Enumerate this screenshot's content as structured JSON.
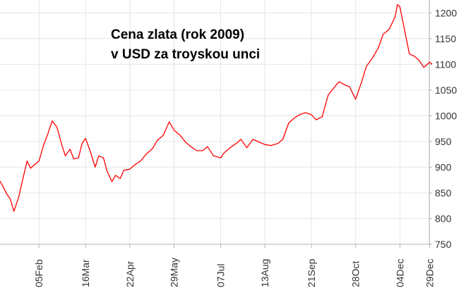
{
  "chart_data": {
    "type": "line",
    "title": "Cena zlata (rok 2009)",
    "subtitle": "v USD za troyskou unci",
    "xlabel": "",
    "ylabel": "",
    "ylim": [
      750,
      1225
    ],
    "x_range": [
      "2009-01-01",
      "2009-12-31"
    ],
    "y_ticks": [
      750,
      800,
      850,
      900,
      950,
      1000,
      1050,
      1100,
      1150,
      1200
    ],
    "x_ticks": [
      {
        "label": "05Feb",
        "date": "2009-02-05"
      },
      {
        "label": "16Mar",
        "date": "2009-03-16"
      },
      {
        "label": "22Apr",
        "date": "2009-04-22"
      },
      {
        "label": "29May",
        "date": "2009-05-29"
      },
      {
        "label": "07Jul",
        "date": "2009-07-07"
      },
      {
        "label": "13Aug",
        "date": "2009-08-13"
      },
      {
        "label": "21Sep",
        "date": "2009-09-21"
      },
      {
        "label": "28Oct",
        "date": "2009-10-28"
      },
      {
        "label": "04Dec",
        "date": "2009-12-04"
      },
      {
        "label": "29Dec",
        "date": "2009-12-29"
      }
    ],
    "grid": true,
    "line_color": "#ff0000",
    "grid_color": "#e6e6e6",
    "axis_color": "#b4b4b4",
    "series": [
      {
        "x": [
          "2009-01-01",
          "2009-01-05",
          "2009-01-09",
          "2009-01-12",
          "2009-01-15",
          "2009-01-19",
          "2009-01-22",
          "2009-01-26",
          "2009-01-29",
          "2009-02-02",
          "2009-02-05",
          "2009-02-09",
          "2009-02-12",
          "2009-02-16",
          "2009-02-20",
          "2009-02-24",
          "2009-02-27",
          "2009-03-03",
          "2009-03-06",
          "2009-03-10",
          "2009-03-13",
          "2009-03-16",
          "2009-03-20",
          "2009-03-24",
          "2009-03-27",
          "2009-03-31",
          "2009-04-03",
          "2009-04-07",
          "2009-04-10",
          "2009-04-14",
          "2009-04-17",
          "2009-04-22",
          "2009-04-27",
          "2009-05-01",
          "2009-05-06",
          "2009-05-11",
          "2009-05-15",
          "2009-05-20",
          "2009-05-25",
          "2009-05-29",
          "2009-06-03",
          "2009-06-08",
          "2009-06-12",
          "2009-06-17",
          "2009-06-22",
          "2009-06-26",
          "2009-07-01",
          "2009-07-07",
          "2009-07-10",
          "2009-07-15",
          "2009-07-20",
          "2009-07-24",
          "2009-07-29",
          "2009-08-03",
          "2009-08-07",
          "2009-08-13",
          "2009-08-18",
          "2009-08-24",
          "2009-08-28",
          "2009-09-02",
          "2009-09-07",
          "2009-09-11",
          "2009-09-16",
          "2009-09-21",
          "2009-09-25",
          "2009-09-30",
          "2009-10-05",
          "2009-10-09",
          "2009-10-14",
          "2009-10-19",
          "2009-10-23",
          "2009-10-28",
          "2009-11-02",
          "2009-11-06",
          "2009-11-11",
          "2009-11-16",
          "2009-11-20",
          "2009-11-25",
          "2009-11-30",
          "2009-12-02",
          "2009-12-04",
          "2009-12-08",
          "2009-12-12",
          "2009-12-16",
          "2009-12-20",
          "2009-12-24",
          "2009-12-29",
          "2009-12-31"
        ],
        "values": [
          882,
          866,
          848,
          838,
          814,
          842,
          872,
          912,
          898,
          906,
          912,
          944,
          962,
          990,
          978,
          944,
          922,
          935,
          916,
          918,
          946,
          956,
          930,
          900,
          922,
          918,
          892,
          872,
          884,
          878,
          894,
          896,
          906,
          912,
          926,
          936,
          952,
          962,
          988,
          972,
          962,
          948,
          940,
          932,
          932,
          940,
          922,
          918,
          928,
          938,
          946,
          954,
          938,
          954,
          950,
          944,
          942,
          946,
          954,
          986,
          996,
          1002,
          1006,
          1002,
          992,
          998,
          1040,
          1052,
          1066,
          1060,
          1056,
          1032,
          1066,
          1096,
          1112,
          1132,
          1158,
          1168,
          1192,
          1216,
          1212,
          1166,
          1120,
          1116,
          1108,
          1094,
          1104,
          1100
        ]
      }
    ]
  }
}
